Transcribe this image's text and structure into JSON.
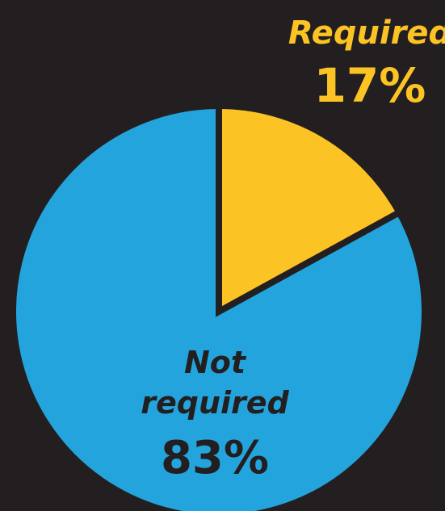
{
  "chart_data": {
    "type": "pie",
    "slices": [
      {
        "label": "Required",
        "value": 17,
        "value_label": "17%",
        "color": "#fcc325",
        "label_color": "#fcc325"
      },
      {
        "label": "Not required",
        "label_lines": [
          "Not",
          "required"
        ],
        "value": 83,
        "value_label": "83%",
        "color": "#24a4dd",
        "label_color": "#231f20"
      }
    ],
    "start_angle_deg": 0,
    "direction": "clockwise",
    "background": "#231f20",
    "stroke_color": "#231f20",
    "legend": "none"
  }
}
